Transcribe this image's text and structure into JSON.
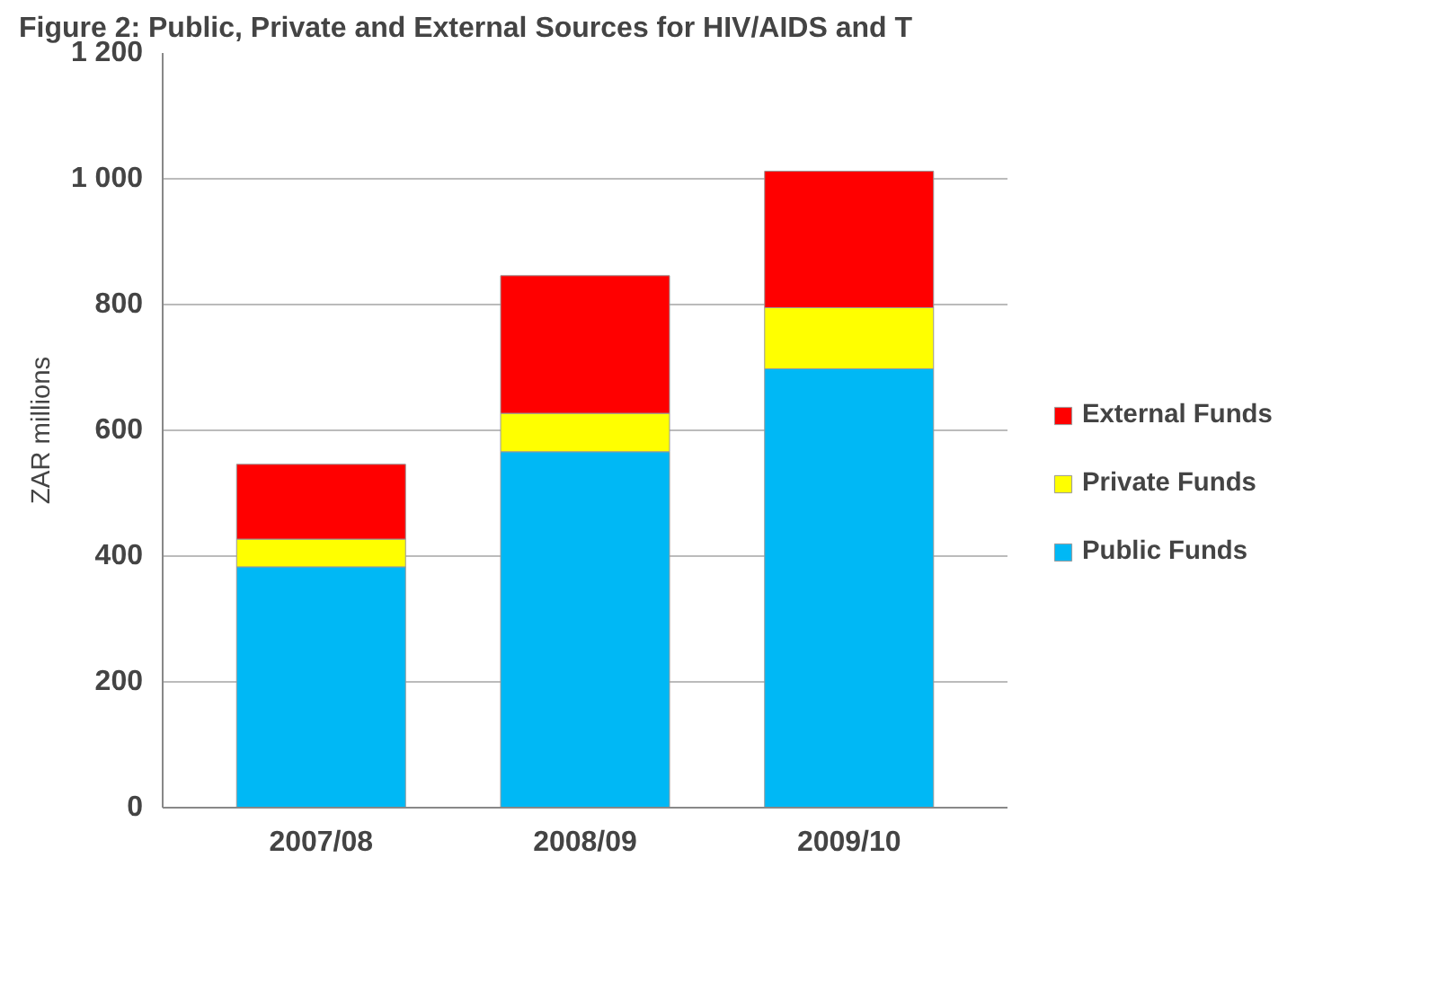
{
  "chart_data": {
    "type": "bar",
    "stacked": true,
    "title": "Figure 2: Public, Private and External Sources for HIV/AIDS and T",
    "ylabel": "ZAR millions",
    "categories": [
      "2007/08",
      "2008/09",
      "2009/10"
    ],
    "series": [
      {
        "name": "Public Funds",
        "color": "#00b8f5",
        "values": [
          383,
          566,
          698
        ]
      },
      {
        "name": "Private Funds",
        "color": "#ffff00",
        "values": [
          44,
          61,
          97
        ]
      },
      {
        "name": "External Funds",
        "color": "#ff0000",
        "values": [
          119,
          219,
          217
        ]
      }
    ],
    "ylim": [
      0,
      1200
    ],
    "yticks": [
      0,
      200,
      400,
      600,
      800,
      {
        "value": 1000,
        "label": "1 000"
      },
      {
        "value": 1200,
        "label": "1 200"
      }
    ],
    "grid": "y",
    "legend": "right"
  }
}
